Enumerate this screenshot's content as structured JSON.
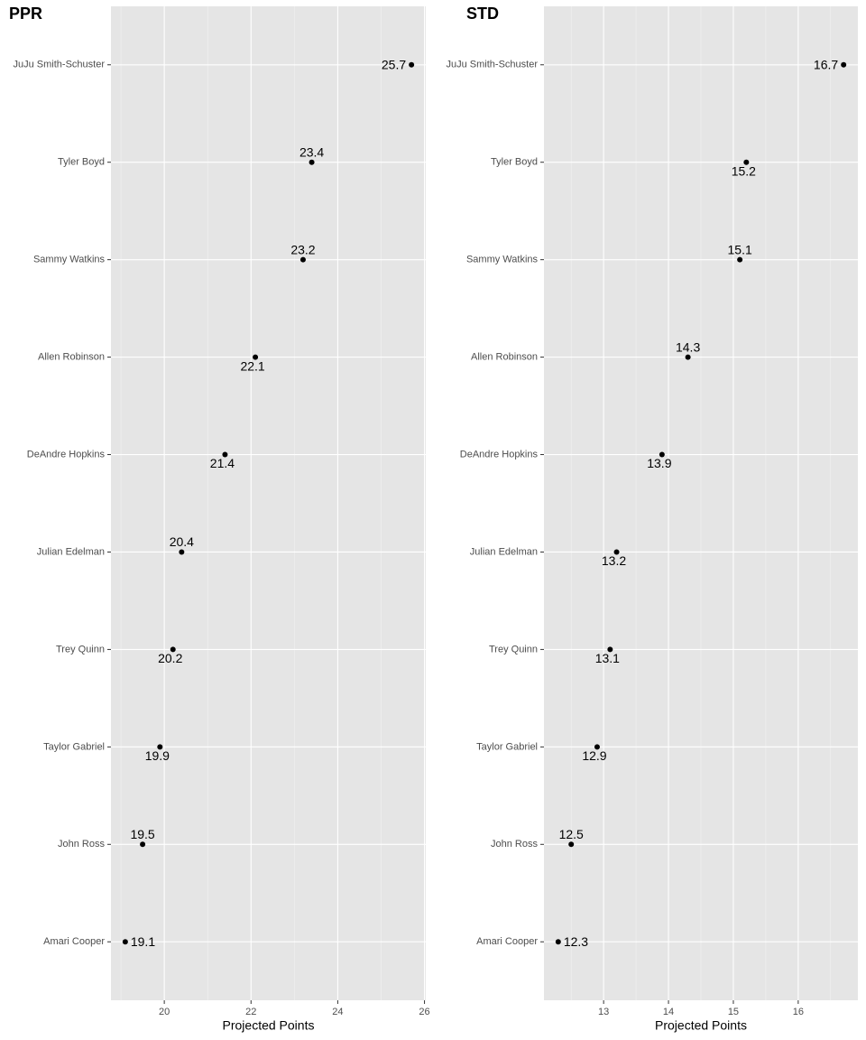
{
  "chart_data": [
    {
      "type": "dot",
      "title": "PPR",
      "x_label": "Projected Points",
      "categories": [
        "JuJu Smith-Schuster",
        "Tyler Boyd",
        "Sammy Watkins",
        "Allen Robinson",
        "DeAndre Hopkins",
        "Julian Edelman",
        "Trey Quinn",
        "Taylor Gabriel",
        "John Ross",
        "Amari Cooper"
      ],
      "values": [
        25.7,
        23.4,
        23.2,
        22.1,
        21.4,
        20.4,
        20.2,
        19.9,
        19.5,
        19.1
      ],
      "xlim": [
        18.77,
        26.03
      ],
      "xticks": [
        20,
        22,
        24,
        26
      ],
      "color": "#000000",
      "grid": true
    },
    {
      "type": "dot",
      "title": "STD",
      "x_label": "Projected Points",
      "categories": [
        "JuJu Smith-Schuster",
        "Tyler Boyd",
        "Sammy Watkins",
        "Allen Robinson",
        "DeAndre Hopkins",
        "Julian Edelman",
        "Trey Quinn",
        "Taylor Gabriel",
        "John Ross",
        "Amari Cooper"
      ],
      "values": [
        16.7,
        15.2,
        15.1,
        14.3,
        13.9,
        13.2,
        13.1,
        12.9,
        12.5,
        12.3
      ],
      "xlim": [
        12.08,
        16.92
      ],
      "xticks": [
        13,
        14,
        15,
        16
      ],
      "color": "#000000",
      "grid": true
    }
  ]
}
